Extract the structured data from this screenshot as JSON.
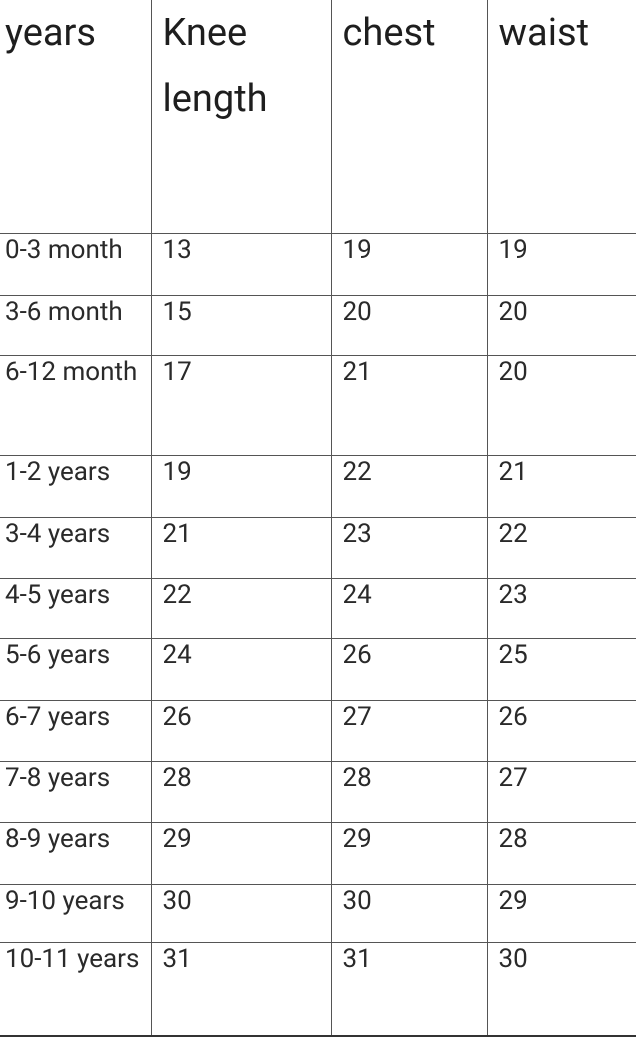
{
  "table": {
    "header": [
      "years",
      "Knee length",
      "chest",
      "waist"
    ],
    "rows": [
      [
        "0-3 month",
        13,
        19,
        19
      ],
      [
        "3-6 month",
        15,
        20,
        20
      ],
      [
        "6-12 month",
        17,
        21,
        20
      ],
      [
        "1-2 years",
        19,
        22,
        21
      ],
      [
        "3-4 years",
        21,
        23,
        22
      ],
      [
        "4-5 years",
        22,
        24,
        23
      ],
      [
        "5-6 years",
        24,
        26,
        25
      ],
      [
        "6-7 years",
        26,
        27,
        26
      ],
      [
        "7-8 years",
        28,
        28,
        27
      ],
      [
        "8-9 years",
        29,
        29,
        28
      ],
      [
        "9-10 years",
        30,
        30,
        29
      ],
      [
        "10-11 years",
        31,
        31,
        30
      ]
    ]
  }
}
